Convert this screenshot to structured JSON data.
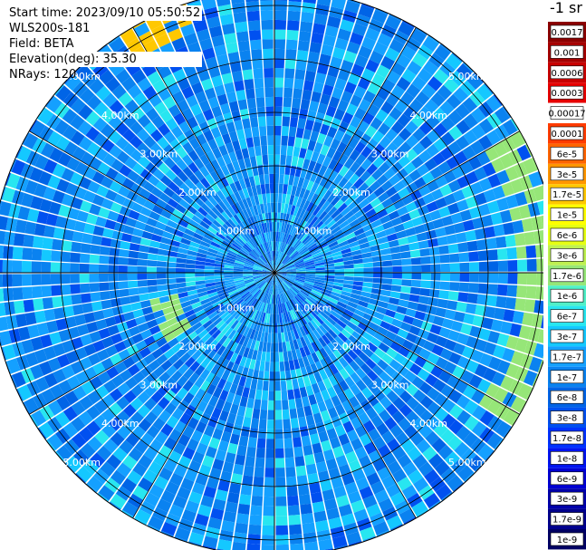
{
  "info": {
    "start_time": "Start time: 2023/09/10 05:50:52",
    "instrument": "WLS200s-181",
    "field": "Field: BETA",
    "elevation": "Elevation(deg): 35.30",
    "nrays": "NRays: 120"
  },
  "colorbar": {
    "unit_label": "-1 sr",
    "levels": [
      {
        "label": "0.0017",
        "color": "#8b0000"
      },
      {
        "label": "0.001",
        "color": "#a50000"
      },
      {
        "label": "0.0006",
        "color": "#c80000"
      },
      {
        "label": "0.0003",
        "color": "#e60000"
      },
      {
        "label": "0.00017",
        "color": "#ffffff"
      },
      {
        "label": "0.0001",
        "color": "#ff3c00"
      },
      {
        "label": "6e-5",
        "color": "#ff6400"
      },
      {
        "label": "3e-5",
        "color": "#ff9600"
      },
      {
        "label": "1.7e-5",
        "color": "#ffc800"
      },
      {
        "label": "1e-5",
        "color": "#ffff00"
      },
      {
        "label": "6e-6",
        "color": "#e6ff14"
      },
      {
        "label": "3e-6",
        "color": "#bef050"
      },
      {
        "label": "1.7e-6",
        "color": "#96e678"
      },
      {
        "label": "1e-6",
        "color": "#50f0c8"
      },
      {
        "label": "6e-7",
        "color": "#28e6f0"
      },
      {
        "label": "3e-7",
        "color": "#14c8ff"
      },
      {
        "label": "1.7e-7",
        "color": "#14a0ff"
      },
      {
        "label": "1e-7",
        "color": "#0a82f0"
      },
      {
        "label": "6e-8",
        "color": "#0064e6"
      },
      {
        "label": "3e-8",
        "color": "#0050f0"
      },
      {
        "label": "1.7e-8",
        "color": "#0032ff"
      },
      {
        "label": "1e-8",
        "color": "#0014f0"
      },
      {
        "label": "6e-9",
        "color": "#0000d2"
      },
      {
        "label": "3e-9",
        "color": "#0000aa"
      },
      {
        "label": "1.7e-9",
        "color": "#00008c"
      },
      {
        "label": "1e-9",
        "color": "#000064"
      }
    ]
  },
  "chart_data": {
    "type": "polar-ppi",
    "field": "BETA",
    "rings_km": [
      1,
      2,
      3,
      4,
      5
    ],
    "ring_labels": [
      "1.00km",
      "2.00km",
      "3.00km",
      "4.00km",
      "5.00km"
    ],
    "max_range_km": 5.3,
    "n_rays": 120,
    "spoke_angles_deg": [
      0,
      30,
      60,
      90,
      120,
      150,
      180,
      210,
      240,
      270,
      300,
      330
    ],
    "grid": true,
    "background_level": "1e-7",
    "features": [
      {
        "description_level": "1.7e-6",
        "azimuth_deg": [
          60,
          120
        ],
        "range_km": [
          4.4,
          5.3
        ]
      },
      {
        "description_level": "1.7e-5",
        "azimuth_deg": [
          325,
          340
        ],
        "range_km": [
          4.6,
          5.3
        ]
      },
      {
        "description_level": "1.7e-6",
        "azimuth_deg": [
          235,
          255
        ],
        "range_km": [
          1.8,
          2.3
        ]
      }
    ]
  }
}
